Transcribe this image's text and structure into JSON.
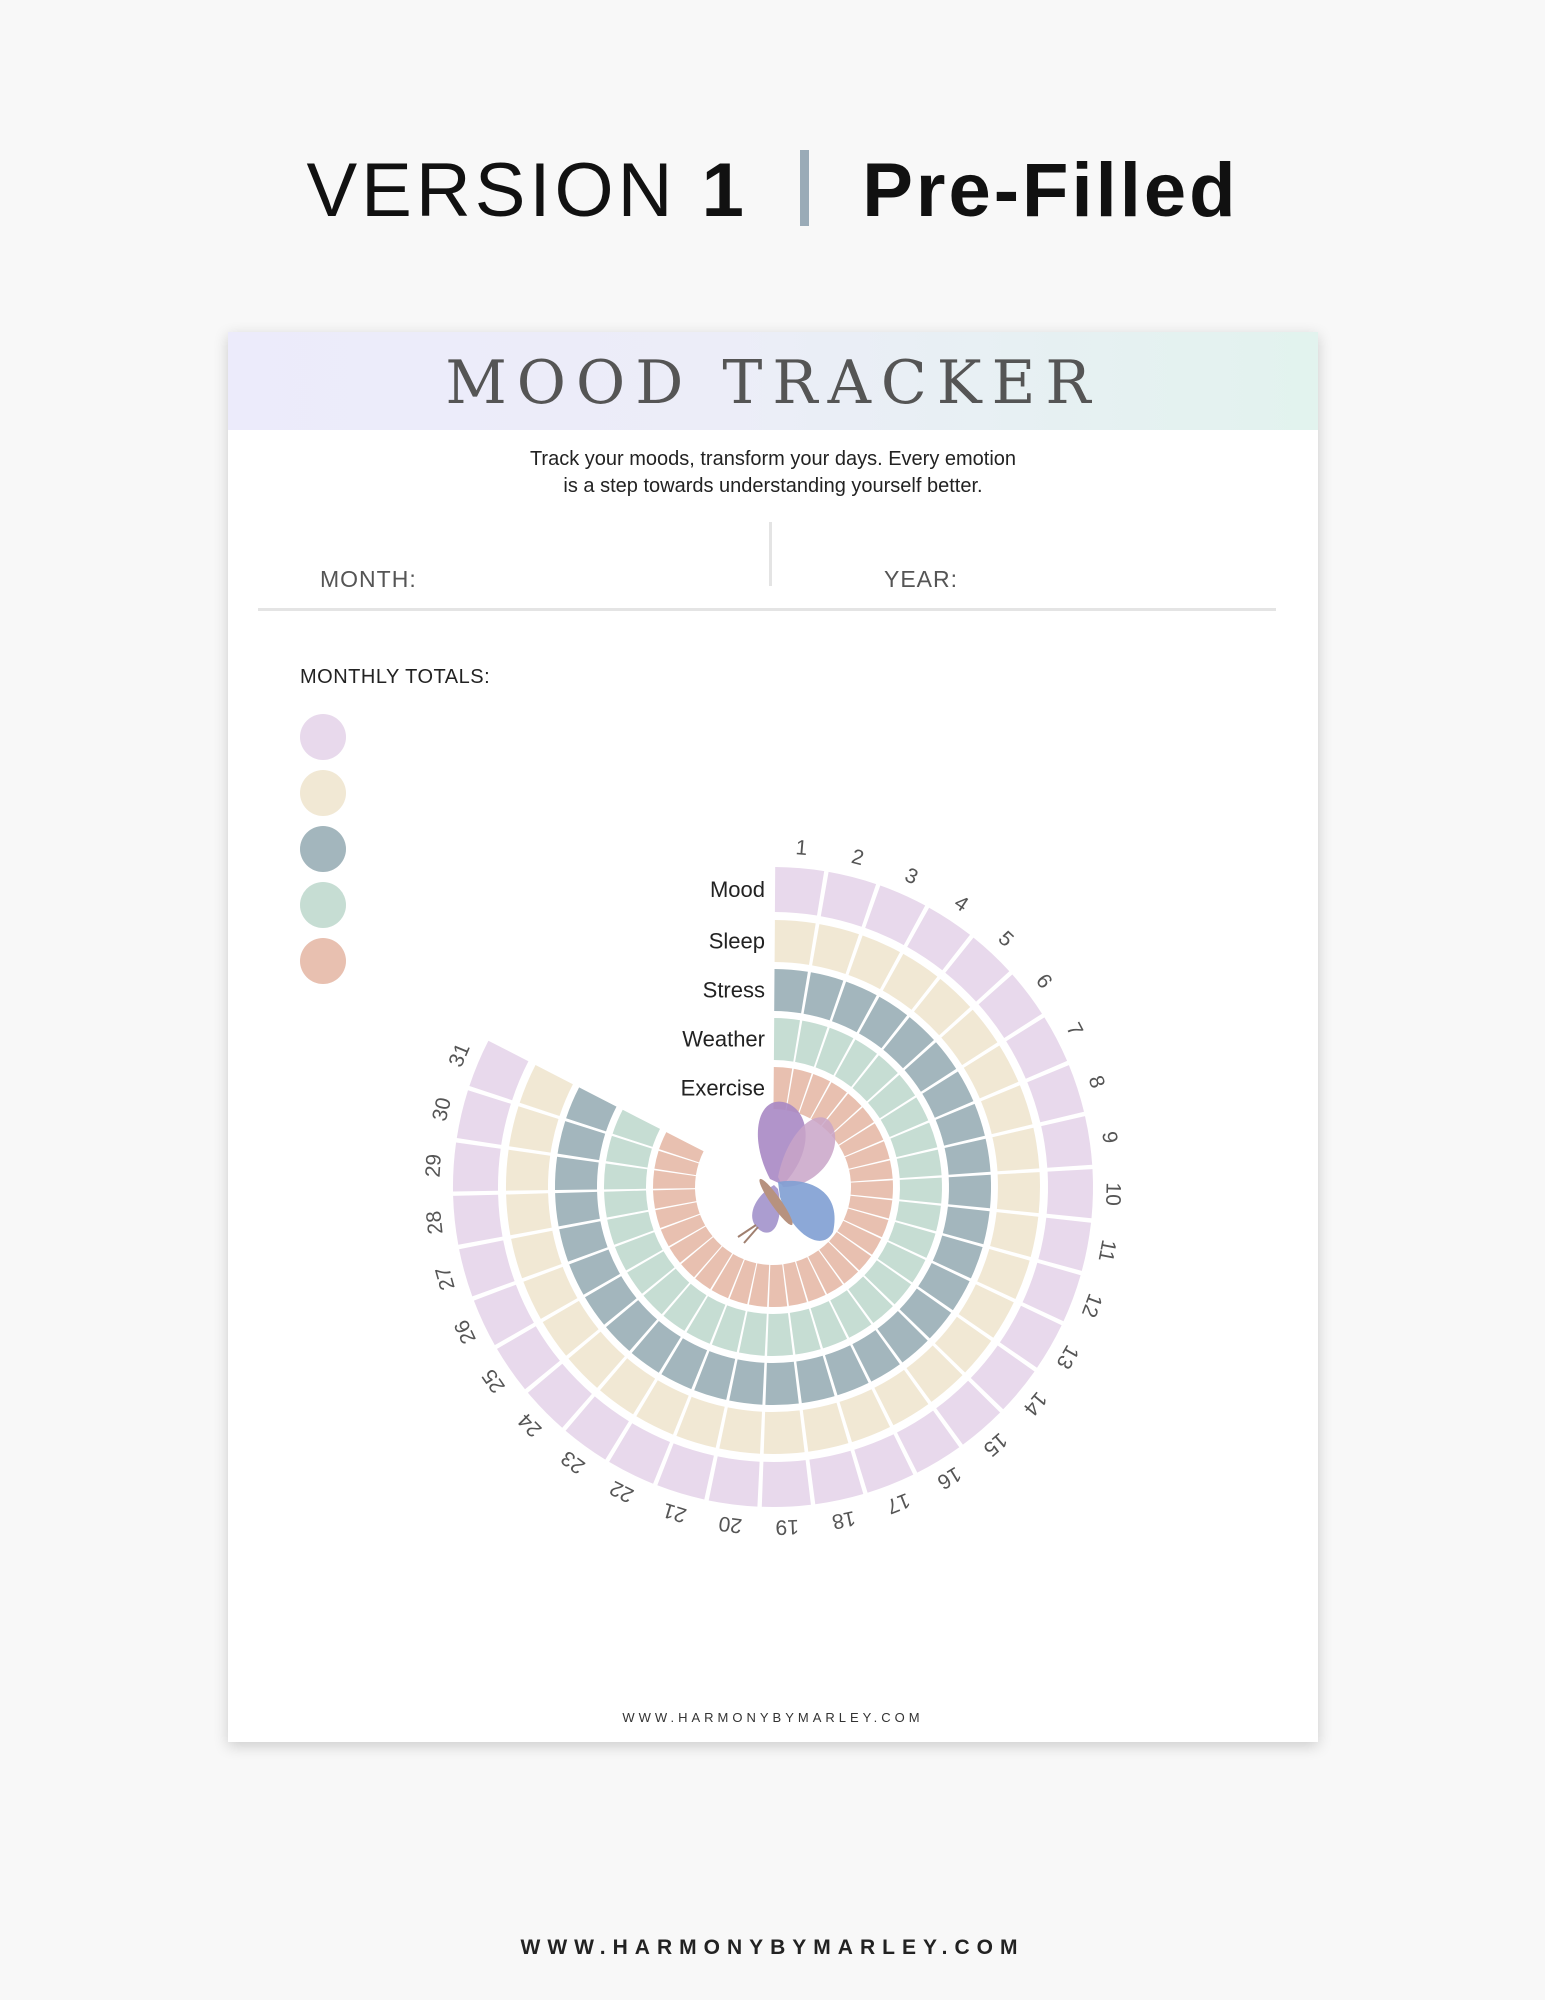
{
  "heading": {
    "version": "VERSION",
    "number": "1",
    "label": "Pre-Filled"
  },
  "sheet": {
    "title": "MOOD TRACKER",
    "tagline_line1": "Track your moods, transform your days. Every emotion",
    "tagline_line2": "is a step towards understanding yourself better.",
    "month_label": "MONTH:",
    "year_label": "YEAR:",
    "totals_label": "MONTHLY TOTALS:",
    "swatches": [
      {
        "color": "#e8d9ec"
      },
      {
        "color": "#f1e8d4"
      },
      {
        "color": "#a3b6bd"
      },
      {
        "color": "#c6ddd3"
      },
      {
        "color": "#e8c0b0"
      }
    ],
    "categories": [
      {
        "name": "Mood",
        "color": "#e8d9ec"
      },
      {
        "name": "Sleep",
        "color": "#f1e8d4"
      },
      {
        "name": "Stress",
        "color": "#a3b6bd"
      },
      {
        "name": "Weather",
        "color": "#c6ddd3"
      },
      {
        "name": "Exercise",
        "color": "#e8c0b0"
      }
    ],
    "days": [
      "1",
      "2",
      "3",
      "4",
      "5",
      "6",
      "7",
      "8",
      "9",
      "10",
      "11",
      "12",
      "13",
      "14",
      "15",
      "16",
      "17",
      "18",
      "19",
      "20",
      "21",
      "22",
      "23",
      "24",
      "25",
      "26",
      "27",
      "28",
      "29",
      "30",
      "31"
    ],
    "butterfly_icon": "butterfly-illustration",
    "website": "WWW.HARMONYBYMARLEY.COM"
  },
  "footer": {
    "website": "WWW.HARMONYBYMARLEY.COM"
  }
}
